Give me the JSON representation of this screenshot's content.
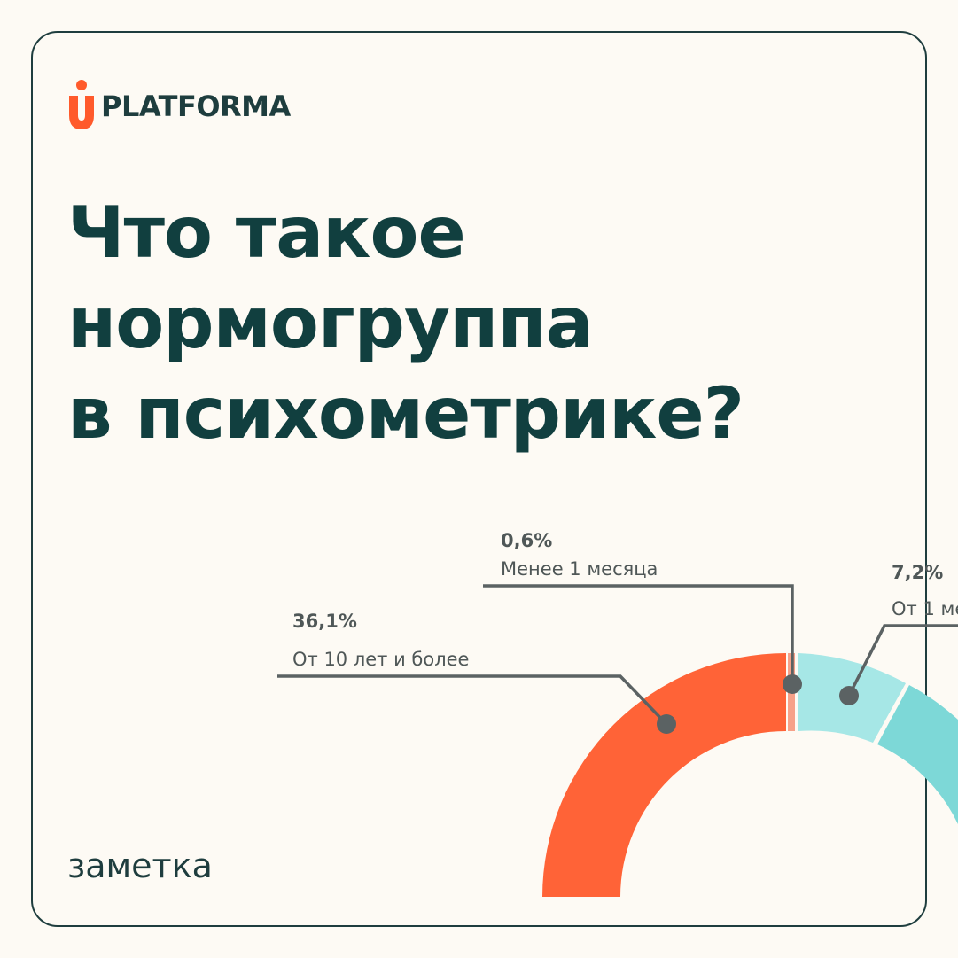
{
  "brand": {
    "name": "PLATFORMA",
    "accent": "#ff5a2b"
  },
  "title_lines": [
    "Что такое",
    "нормогруппа",
    "в психометрике?"
  ],
  "footer_tag": "заметка",
  "colors": {
    "text": "#113f3f",
    "orange": "#ff6337",
    "mint_light": "#a6e7e6",
    "mint_dark": "#7dd8d7",
    "leader": "#5b6263"
  },
  "chart_data": {
    "type": "pie",
    "variant": "donut",
    "slices": [
      {
        "label": "От 10 лет и более",
        "pct_label": "36,1%",
        "value": 36.1
      },
      {
        "label": "Менее 1 месяца",
        "pct_label": "0,6%",
        "value": 0.6
      },
      {
        "label": "От 1 ме",
        "pct_label": "7,2%",
        "value": 7.2
      }
    ]
  }
}
